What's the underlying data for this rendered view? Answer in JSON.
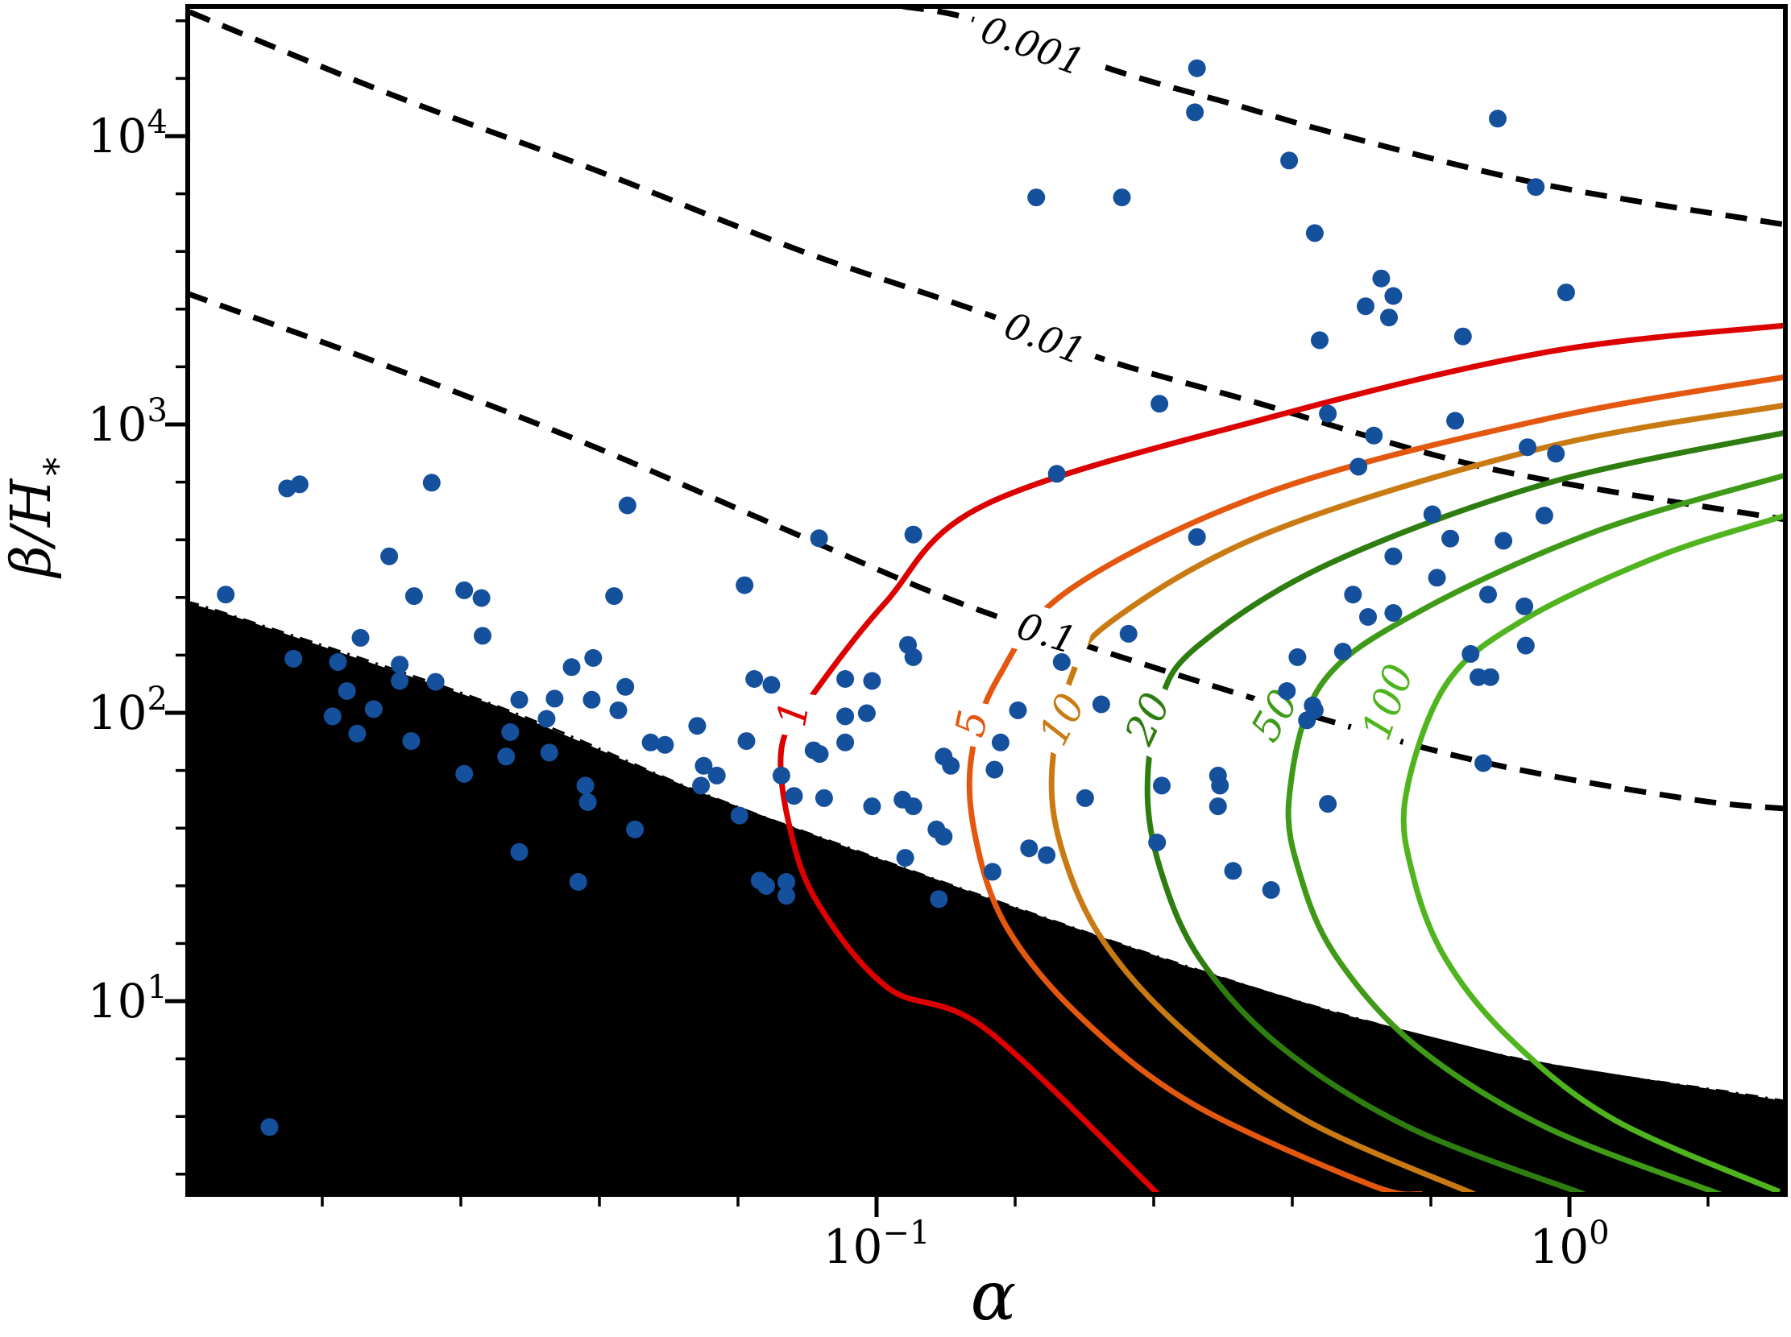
{
  "chart_data": {
    "type": "scatter",
    "title": "",
    "xlabel": "α",
    "ylabel": "β/H∗",
    "xscale": "log",
    "yscale": "log",
    "xlim": [
      0.0101,
      2.05
    ],
    "ylim": [
      2.14,
      28200
    ],
    "grid": false,
    "legend": "none",
    "x_ticks": [
      {
        "value": 0.1,
        "base": "10",
        "exp": "−1"
      },
      {
        "value": 1.0,
        "base": "10",
        "exp": "0"
      }
    ],
    "y_ticks": [
      {
        "value": 10,
        "base": "10",
        "exp": "1"
      },
      {
        "value": 100,
        "base": "10",
        "exp": "2"
      },
      {
        "value": 1000,
        "base": "10",
        "exp": "3"
      },
      {
        "value": 10000,
        "base": "10",
        "exp": "4"
      }
    ],
    "minor_tick_log_step": 0.2,
    "scatter": {
      "name": "models",
      "color": "#15509d",
      "marker_radius_px": 11,
      "points": [
        [
          0.29,
          17200
        ],
        [
          0.288,
          12100
        ],
        [
          0.394,
          8230
        ],
        [
          0.788,
          11500
        ],
        [
          0.17,
          6130
        ],
        [
          0.226,
          6130
        ],
        [
          0.429,
          4610
        ],
        [
          0.894,
          6660
        ],
        [
          0.535,
          3210
        ],
        [
          0.508,
          2570
        ],
        [
          0.557,
          2790
        ],
        [
          0.549,
          2350
        ],
        [
          0.702,
          2020
        ],
        [
          0.989,
          2870
        ],
        [
          0.436,
          1960
        ],
        [
          0.256,
          1180
        ],
        [
          0.448,
          1090
        ],
        [
          0.522,
          915
        ],
        [
          0.684,
          1030
        ],
        [
          0.87,
          834
        ],
        [
          0.956,
          792
        ],
        [
          0.182,
          674
        ],
        [
          0.496,
          714
        ],
        [
          0.634,
          488
        ],
        [
          0.673,
          402
        ],
        [
          0.803,
          395
        ],
        [
          0.92,
          483
        ],
        [
          0.557,
          349
        ],
        [
          0.644,
          294
        ],
        [
          0.763,
          257
        ],
        [
          0.487,
          257
        ],
        [
          0.29,
          407
        ],
        [
          0.861,
          234
        ],
        [
          0.0141,
          600
        ],
        [
          0.0147,
          620
        ],
        [
          0.0228,
          628
        ],
        [
          0.0437,
          524
        ],
        [
          0.0826,
          403
        ],
        [
          0.113,
          415
        ],
        [
          0.0198,
          349
        ],
        [
          0.0645,
          277
        ],
        [
          0.0215,
          254
        ],
        [
          0.0254,
          266
        ],
        [
          0.0269,
          250
        ],
        [
          0.0418,
          254
        ],
        [
          0.0115,
          257
        ],
        [
          0.018,
          182
        ],
        [
          0.027,
          185
        ],
        [
          0.0144,
          154
        ],
        [
          0.0167,
          150
        ],
        [
          0.0205,
          147
        ],
        [
          0.0205,
          129
        ],
        [
          0.0172,
          119
        ],
        [
          0.0231,
          128
        ],
        [
          0.0164,
          97.2
        ],
        [
          0.0178,
          84.7
        ],
        [
          0.0188,
          103
        ],
        [
          0.0213,
          79.8
        ],
        [
          0.0305,
          111
        ],
        [
          0.0343,
          112
        ],
        [
          0.0388,
          111
        ],
        [
          0.039,
          155
        ],
        [
          0.0363,
          144
        ],
        [
          0.0434,
          123
        ],
        [
          0.0424,
          102
        ],
        [
          0.0334,
          95.3
        ],
        [
          0.0296,
          85.7
        ],
        [
          0.0292,
          70.5
        ],
        [
          0.0337,
          72.8
        ],
        [
          0.0254,
          61.4
        ],
        [
          0.038,
          55.9
        ],
        [
          0.0383,
          49.0
        ],
        [
          0.0472,
          78.9
        ],
        [
          0.0495,
          77.4
        ],
        [
          0.0551,
          90.1
        ],
        [
          0.0649,
          79.8
        ],
        [
          0.0563,
          65.5
        ],
        [
          0.0588,
          60.6
        ],
        [
          0.0558,
          55.9
        ],
        [
          0.0448,
          39.4
        ],
        [
          0.0634,
          44.0
        ],
        [
          0.0305,
          32.9
        ],
        [
          0.0371,
          25.9
        ],
        [
          0.0678,
          26.2
        ],
        [
          0.0693,
          25.1
        ],
        [
          0.0741,
          25.9
        ],
        [
          0.0741,
          23.2
        ],
        [
          0.0729,
          60.6
        ],
        [
          0.076,
          51.5
        ],
        [
          0.084,
          50.6
        ],
        [
          0.0811,
          74.1
        ],
        [
          0.0828,
          72.0
        ],
        [
          0.0901,
          97.2
        ],
        [
          0.0968,
          99.7
        ],
        [
          0.0901,
          78.9
        ],
        [
          0.0985,
          47.4
        ],
        [
          0.109,
          50.0
        ],
        [
          0.113,
          47.4
        ],
        [
          0.111,
          172
        ],
        [
          0.113,
          156
        ],
        [
          0.0666,
          131
        ],
        [
          0.0705,
          125
        ],
        [
          0.0901,
          131
        ],
        [
          0.0985,
          129
        ],
        [
          0.125,
          70.5
        ],
        [
          0.128,
          65.5
        ],
        [
          0.122,
          39.4
        ],
        [
          0.125,
          37.2
        ],
        [
          0.11,
          31.4
        ],
        [
          0.123,
          22.6
        ],
        [
          0.0133,
          3.66
        ],
        [
          0.231,
          188
        ],
        [
          0.185,
          150
        ],
        [
          0.16,
          102
        ],
        [
          0.151,
          78.9
        ],
        [
          0.148,
          63.5
        ],
        [
          0.211,
          107
        ],
        [
          0.391,
          119
        ],
        [
          0.426,
          106
        ],
        [
          0.418,
          94.2
        ],
        [
          0.429,
          102
        ],
        [
          0.405,
          156
        ],
        [
          0.471,
          163
        ],
        [
          0.512,
          215
        ],
        [
          0.557,
          222
        ],
        [
          0.72,
          160
        ],
        [
          0.739,
          133
        ],
        [
          0.769,
          133
        ],
        [
          0.865,
          171
        ],
        [
          0.751,
          66.9
        ],
        [
          0.258,
          55.9
        ],
        [
          0.311,
          60.6
        ],
        [
          0.313,
          55.9
        ],
        [
          0.311,
          47.4
        ],
        [
          0.2,
          50.6
        ],
        [
          0.254,
          35.5
        ],
        [
          0.327,
          28.3
        ],
        [
          0.371,
          24.3
        ],
        [
          0.448,
          48.3
        ],
        [
          0.166,
          33.9
        ],
        [
          0.176,
          32.1
        ],
        [
          0.147,
          28.1
        ]
      ]
    },
    "dashed_contours": [
      {
        "level": "0.001",
        "color": "#000000",
        "label_at": [
          0.168,
          20560
        ],
        "label_rot": 20,
        "points": [
          [
            0.109,
            28200
          ],
          [
            0.139,
            25230
          ],
          [
            0.22,
            16940
          ],
          [
            0.329,
            12850
          ],
          [
            0.47,
            10070
          ],
          [
            0.928,
            6760
          ],
          [
            2.05,
            4930
          ]
        ]
      },
      {
        "level": "0.01",
        "color": "#000000",
        "label_at": [
          0.175,
          1991
        ],
        "label_rot": 21,
        "points": [
          [
            0.0102,
            26920
          ],
          [
            0.0199,
            13960
          ],
          [
            0.0392,
            7638
          ],
          [
            0.077,
            4036
          ],
          [
            0.144,
            2415
          ],
          [
            0.211,
            1694
          ],
          [
            0.344,
            1213
          ],
          [
            0.769,
            702
          ],
          [
            2.05,
            468
          ]
        ]
      },
      {
        "level": "0.1",
        "color": "#000000",
        "label_at": [
          0.176,
          189
        ],
        "label_rot": 17,
        "points": [
          [
            0.0101,
            2852
          ],
          [
            0.0199,
            1578
          ],
          [
            0.0392,
            835
          ],
          [
            0.077,
            414
          ],
          [
            0.128,
            247
          ],
          [
            0.205,
            168
          ],
          [
            0.411,
            100
          ],
          [
            0.757,
            67.1
          ],
          [
            1.49,
            50.2
          ],
          [
            2.05,
            46.5
          ]
        ]
      }
    ],
    "solid_contours": [
      {
        "level": "1",
        "color": "#dc0000",
        "label_at": [
          0.0757,
          99.3
        ],
        "label_rot": -80,
        "points": [
          [
            2.05,
            2206
          ],
          [
            0.928,
            1783
          ],
          [
            0.371,
            1060
          ],
          [
            0.144,
            529
          ],
          [
            0.103,
            241
          ],
          [
            0.0812,
            117
          ],
          [
            0.073,
            76.8
          ],
          [
            0.075,
            39.6
          ],
          [
            0.0825,
            21.6
          ],
          [
            0.104,
            11.1
          ],
          [
            0.144,
            7.98
          ],
          [
            0.255,
            2.14
          ]
        ]
      },
      {
        "level": "5",
        "color": "#e4570f",
        "label_at": [
          0.137,
          91.8
        ],
        "label_rot": -78,
        "points": [
          [
            2.05,
            1462
          ],
          [
            0.928,
            1047
          ],
          [
            0.371,
            586
          ],
          [
            0.191,
            270
          ],
          [
            0.15,
            133
          ],
          [
            0.137,
            70.0
          ],
          [
            0.139,
            36.7
          ],
          [
            0.154,
            18.1
          ],
          [
            0.196,
            8.91
          ],
          [
            0.286,
            4.4
          ],
          [
            0.515,
            2.31
          ],
          [
            0.613,
            2.14
          ]
        ]
      },
      {
        "level": "10",
        "color": "#c97a12",
        "label_at": [
          0.185,
          94.9
        ],
        "label_rot": -63,
        "points": [
          [
            2.05,
            1167
          ],
          [
            0.928,
            835
          ],
          [
            0.371,
            425
          ],
          [
            0.219,
            209
          ],
          [
            0.191,
            133
          ],
          [
            0.179,
            61.5
          ],
          [
            0.186,
            32.3
          ],
          [
            0.213,
            16.0
          ],
          [
            0.278,
            7.87
          ],
          [
            0.415,
            3.88
          ],
          [
            0.729,
            2.14
          ]
        ]
      },
      {
        "level": "20",
        "color": "#2e7d10",
        "label_at": [
          0.246,
          95.5
        ],
        "label_rot": -65,
        "points": [
          [
            2.05,
            937
          ],
          [
            0.928,
            625
          ],
          [
            0.45,
            329
          ],
          [
            0.293,
            173
          ],
          [
            0.257,
            110
          ],
          [
            0.246,
            54.2
          ],
          [
            0.257,
            28.5
          ],
          [
            0.293,
            14.0
          ],
          [
            0.384,
            6.92
          ],
          [
            0.588,
            3.64
          ],
          [
            1.05,
            2.14
          ]
        ]
      },
      {
        "level": "50",
        "color": "#3f9a18",
        "label_at": [
          0.375,
          98.0
        ],
        "label_rot": -60,
        "points": [
          [
            2.05,
            667
          ],
          [
            1.09,
            425
          ],
          [
            0.604,
            223
          ],
          [
            0.438,
            125
          ],
          [
            0.394,
            50.8
          ],
          [
            0.41,
            26.7
          ],
          [
            0.463,
            14.0
          ],
          [
            0.604,
            6.92
          ],
          [
            0.928,
            3.64
          ],
          [
            1.65,
            2.14
          ]
        ]
      },
      {
        "level": "100",
        "color": "#4fb41e",
        "label_at": [
          0.546,
          109
        ],
        "label_rot": -70,
        "points": [
          [
            2.05,
            483
          ],
          [
            1.35,
            350
          ],
          [
            0.856,
            209
          ],
          [
            0.663,
            125
          ],
          [
            0.58,
            50.8
          ],
          [
            0.596,
            26.7
          ],
          [
            0.663,
            14.0
          ],
          [
            0.822,
            7.38
          ],
          [
            1.16,
            3.88
          ],
          [
            2.01,
            2.18
          ]
        ]
      }
    ],
    "excluded_region": {
      "name": "excluded-region",
      "fill": "#000000",
      "edge_style": "dash-dot",
      "boundary_points": [
        [
          0.0101,
          241
        ],
        [
          0.0115,
          221
        ],
        [
          0.0279,
          107
        ],
        [
          0.055,
          53.6
        ],
        [
          0.0912,
          34.0
        ],
        [
          0.144,
          22.9
        ],
        [
          0.278,
          13.3
        ],
        [
          0.47,
          9.01
        ],
        [
          0.852,
          6.28
        ],
        [
          1.74,
          4.8
        ],
        [
          2.05,
          4.5
        ]
      ]
    }
  }
}
